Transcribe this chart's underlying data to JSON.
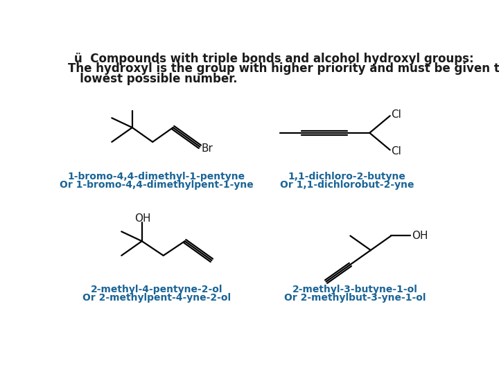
{
  "bg_color": "#ffffff",
  "text_color": "#1a1a1a",
  "blue_color": "#1a6496",
  "header_line1": "ü  Compounds with triple bonds and alcohol hydroxyl groups:",
  "header_line2": "The hydroxyl is the group with higher priority and must be given the",
  "header_line3": "   lowest possible number.",
  "label1a": "1-bromo-4,4-dimethyl-1-pentyne",
  "label1b": "Or 1-bromo-4,4-dimethylpent-1-yne",
  "label2a": "1,1-dichloro-2-butyne",
  "label2b": "Or 1,1-dichlorobut-2-yne",
  "label3a": "2-methyl-4-pentyne-2-ol",
  "label3b": "Or 2-methylpent-4-yne-2-ol",
  "label4a": "2-methyl-3-butyne-1-ol",
  "label4b": "Or 2-methylbut-3-yne-1-ol"
}
